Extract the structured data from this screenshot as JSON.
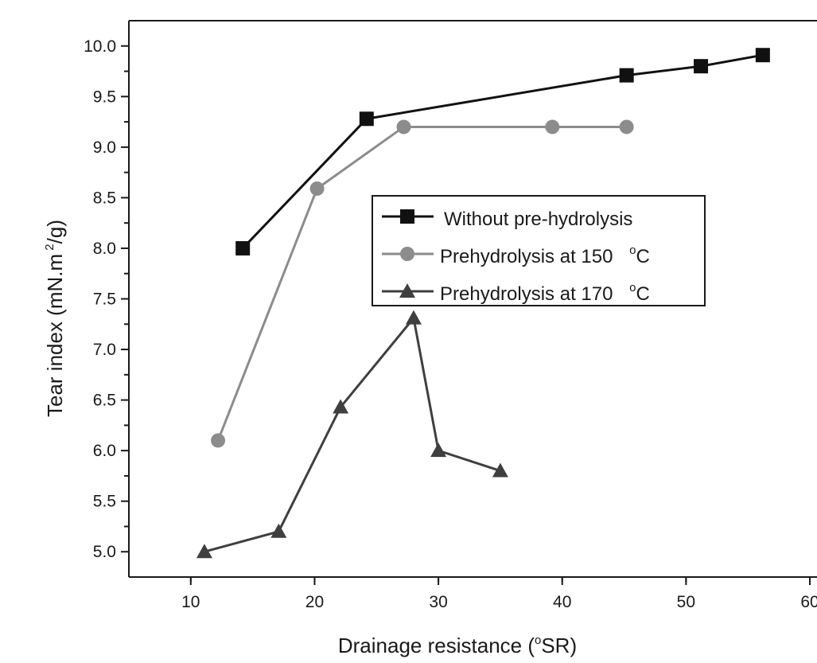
{
  "chart_data": {
    "type": "line",
    "xlabel": "Drainage resistance (°SR)",
    "ylabel": "Tear index (mN.m²/g)",
    "xlim": [
      5,
      60
    ],
    "ylim": [
      4.75,
      10.25
    ],
    "x_ticks": [
      10,
      20,
      30,
      40,
      50,
      60
    ],
    "y_ticks": [
      5.0,
      5.5,
      6.0,
      6.5,
      7.0,
      7.5,
      8.0,
      8.5,
      9.0,
      9.5,
      10.0
    ],
    "x_tick_labels": [
      "10",
      "20",
      "30",
      "40",
      "50",
      "60"
    ],
    "y_tick_labels": [
      "5.0",
      "5.5",
      "6.0",
      "6.5",
      "7.0",
      "7.5",
      "8.0",
      "8.5",
      "9.0",
      "9.5",
      "10.0"
    ],
    "grid": false,
    "legend_position": "center",
    "series": [
      {
        "name": "Without pre-hydrolysis",
        "marker": "square",
        "color": "#111111",
        "x": [
          14.2,
          24.2,
          45.2,
          51.2,
          56.2
        ],
        "y": [
          8.0,
          9.28,
          9.71,
          9.8,
          9.91
        ]
      },
      {
        "name": "Prehydrolysis at 150 °C",
        "marker": "circle",
        "color": "#8c8c8c",
        "x": [
          12.2,
          20.2,
          27.2,
          39.2,
          45.2
        ],
        "y": [
          6.1,
          8.59,
          9.2,
          9.2,
          9.2
        ]
      },
      {
        "name": "Prehydrolysis at 170 °C",
        "marker": "triangle",
        "color": "#3f3f3f",
        "x": [
          11.1,
          17.1,
          22.1,
          28.0,
          30.0,
          35.0
        ],
        "y": [
          5.0,
          5.2,
          6.43,
          7.31,
          6.0,
          5.8
        ]
      }
    ]
  }
}
